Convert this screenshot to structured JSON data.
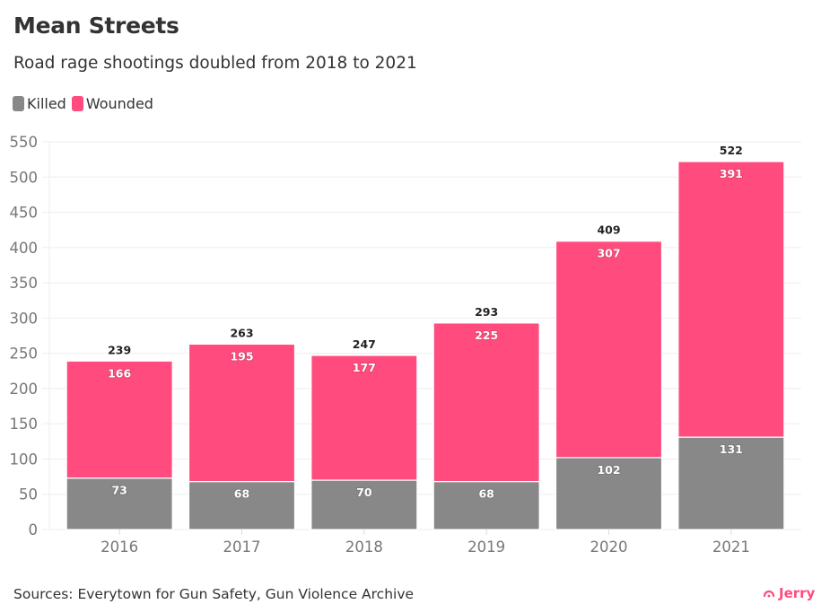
{
  "header": {
    "title": "Mean Streets",
    "subtitle": "Road rage shootings doubled from 2018 to 2021"
  },
  "legend": [
    {
      "label": "Killed",
      "color": "#888888"
    },
    {
      "label": "Wounded",
      "color": "#ff4b7d"
    }
  ],
  "footer": {
    "source": "Sources: Everytown for Gun Safety, Gun Violence Archive",
    "brand": "Jerry",
    "brand_icon": "jerry-logo-icon"
  },
  "chart_data": {
    "type": "bar",
    "stacked": true,
    "title": "Mean Streets",
    "subtitle": "Road rage shootings doubled from 2018 to 2021",
    "xlabel": "",
    "ylabel": "",
    "categories": [
      "2016",
      "2017",
      "2018",
      "2019",
      "2020",
      "2021"
    ],
    "series": [
      {
        "name": "Killed",
        "color": "#888888",
        "values": [
          73,
          68,
          70,
          68,
          102,
          131
        ]
      },
      {
        "name": "Wounded",
        "color": "#ff4b7d",
        "values": [
          166,
          195,
          177,
          225,
          307,
          391
        ]
      }
    ],
    "totals": [
      239,
      263,
      247,
      293,
      409,
      522
    ],
    "ylim": [
      0,
      550
    ],
    "yticks": [
      0,
      50,
      100,
      150,
      200,
      250,
      300,
      350,
      400,
      450,
      500,
      550
    ],
    "grid": true,
    "legend_position": "top-left"
  }
}
